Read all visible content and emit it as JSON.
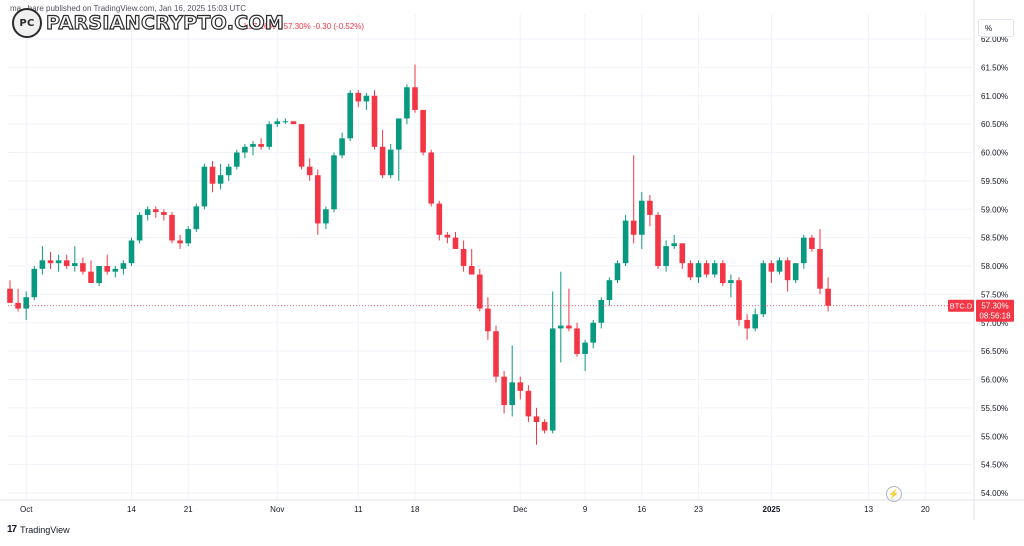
{
  "header": {
    "published": "ma...hare published on TradingView.com, Jan 16, 2025 15:03 UTC",
    "ohlc": "L57.16%  C57.30%  -0.30 (-0.52%)"
  },
  "watermark": {
    "text": "PARSIANCRYPTO.COM",
    "badge": "PC"
  },
  "scale_button": {
    "label": "%"
  },
  "footer": {
    "logo_mark": "17",
    "brand": "TradingView"
  },
  "colors": {
    "up": "#089981",
    "down": "#f23645",
    "grid": "#f0f3fa",
    "axis_text": "#131722"
  },
  "chart_data": {
    "type": "candlestick",
    "symbol": "BTC.D",
    "last_price_label": "57.30%",
    "countdown_label": "08:56:18",
    "last_price": 57.3,
    "ylim": [
      54.0,
      62.0
    ],
    "y_ticks": [
      "54.00%",
      "54.50%",
      "55.00%",
      "55.50%",
      "56.00%",
      "56.50%",
      "57.00%",
      "57.50%",
      "58.00%",
      "58.50%",
      "59.00%",
      "59.50%",
      "60.00%",
      "60.50%",
      "61.00%",
      "61.50%",
      "62.00%"
    ],
    "y_values": [
      54.0,
      54.5,
      55.0,
      55.5,
      56.0,
      56.5,
      57.0,
      57.5,
      58.0,
      58.5,
      59.0,
      59.5,
      60.0,
      60.5,
      61.0,
      61.5,
      62.0
    ],
    "x_ticks": [
      {
        "label": "Oct",
        "index": 2
      },
      {
        "label": "14",
        "index": 15
      },
      {
        "label": "21",
        "index": 22
      },
      {
        "label": "Nov",
        "index": 33
      },
      {
        "label": "11",
        "index": 43
      },
      {
        "label": "18",
        "index": 50
      },
      {
        "label": "Dec",
        "index": 63
      },
      {
        "label": "9",
        "index": 71
      },
      {
        "label": "16",
        "index": 78
      },
      {
        "label": "23",
        "index": 85
      },
      {
        "label": "2025",
        "index": 94
      },
      {
        "label": "13",
        "index": 106
      },
      {
        "label": "20",
        "index": 113
      }
    ],
    "candles": [
      [
        57.6,
        57.75,
        57.35,
        57.35
      ],
      [
        57.35,
        57.6,
        57.2,
        57.25
      ],
      [
        57.25,
        57.55,
        57.05,
        57.45
      ],
      [
        57.45,
        58.0,
        57.4,
        57.95
      ],
      [
        57.95,
        58.35,
        57.85,
        58.1
      ],
      [
        58.1,
        58.25,
        57.95,
        58.05
      ],
      [
        58.05,
        58.2,
        57.9,
        58.1
      ],
      [
        58.1,
        58.2,
        57.95,
        58.0
      ],
      [
        58.0,
        58.35,
        57.9,
        58.05
      ],
      [
        58.05,
        58.15,
        57.85,
        57.9
      ],
      [
        57.9,
        58.1,
        57.7,
        57.7
      ],
      [
        57.7,
        58.0,
        57.65,
        58.0
      ],
      [
        58.0,
        58.2,
        57.85,
        57.9
      ],
      [
        57.9,
        58.0,
        57.8,
        57.95
      ],
      [
        57.95,
        58.1,
        57.85,
        58.05
      ],
      [
        58.05,
        58.5,
        58.0,
        58.45
      ],
      [
        58.45,
        58.95,
        58.4,
        58.9
      ],
      [
        58.9,
        59.05,
        58.8,
        59.0
      ],
      [
        59.0,
        59.05,
        58.85,
        58.95
      ],
      [
        58.95,
        59.0,
        58.8,
        58.9
      ],
      [
        58.9,
        58.95,
        58.4,
        58.45
      ],
      [
        58.45,
        58.55,
        58.3,
        58.4
      ],
      [
        58.4,
        58.7,
        58.35,
        58.65
      ],
      [
        58.65,
        59.1,
        58.6,
        59.05
      ],
      [
        59.05,
        59.8,
        59.0,
        59.75
      ],
      [
        59.75,
        59.85,
        59.3,
        59.45
      ],
      [
        59.45,
        59.8,
        59.35,
        59.6
      ],
      [
        59.6,
        59.8,
        59.5,
        59.75
      ],
      [
        59.75,
        60.05,
        59.7,
        60.0
      ],
      [
        60.0,
        60.15,
        59.9,
        60.1
      ],
      [
        60.1,
        60.2,
        59.95,
        60.15
      ],
      [
        60.15,
        60.25,
        60.05,
        60.1
      ],
      [
        60.1,
        60.55,
        60.05,
        60.5
      ],
      [
        60.5,
        60.6,
        60.45,
        60.55
      ],
      [
        60.55,
        60.6,
        60.5,
        60.55
      ],
      [
        60.55,
        60.55,
        60.5,
        60.5
      ],
      [
        60.5,
        60.5,
        59.7,
        59.75
      ],
      [
        59.75,
        59.9,
        59.5,
        59.6
      ],
      [
        59.6,
        59.7,
        58.55,
        58.75
      ],
      [
        58.75,
        59.05,
        58.65,
        59.0
      ],
      [
        59.0,
        60.0,
        58.95,
        59.95
      ],
      [
        59.95,
        60.35,
        59.9,
        60.25
      ],
      [
        60.25,
        61.1,
        60.2,
        61.05
      ],
      [
        61.05,
        61.1,
        60.8,
        60.9
      ],
      [
        60.9,
        61.05,
        60.75,
        61.0
      ],
      [
        61.0,
        61.1,
        60.05,
        60.1
      ],
      [
        60.1,
        60.4,
        59.55,
        59.6
      ],
      [
        59.6,
        60.15,
        59.55,
        60.05
      ],
      [
        60.05,
        60.6,
        59.5,
        60.6
      ],
      [
        60.6,
        61.2,
        60.5,
        61.15
      ],
      [
        61.15,
        61.55,
        60.7,
        60.75
      ],
      [
        60.75,
        60.75,
        59.95,
        60.0
      ],
      [
        60.0,
        60.05,
        59.05,
        59.1
      ],
      [
        59.1,
        59.15,
        58.45,
        58.55
      ],
      [
        58.55,
        58.6,
        58.4,
        58.5
      ],
      [
        58.5,
        58.6,
        58.3,
        58.3
      ],
      [
        58.3,
        58.45,
        57.9,
        58.0
      ],
      [
        58.0,
        58.3,
        57.9,
        57.85
      ],
      [
        57.85,
        57.95,
        57.2,
        57.25
      ],
      [
        57.25,
        57.45,
        56.7,
        56.85
      ],
      [
        56.85,
        56.95,
        55.95,
        56.05
      ],
      [
        56.05,
        56.15,
        55.4,
        55.55
      ],
      [
        55.55,
        56.6,
        55.35,
        55.95
      ],
      [
        55.95,
        56.05,
        55.65,
        55.8
      ],
      [
        55.8,
        55.9,
        55.25,
        55.35
      ],
      [
        55.35,
        55.5,
        54.85,
        55.25
      ],
      [
        55.25,
        55.3,
        55.05,
        55.1
      ],
      [
        55.1,
        57.55,
        55.05,
        56.9
      ],
      [
        56.9,
        57.9,
        56.3,
        56.95
      ],
      [
        56.95,
        57.6,
        56.85,
        56.9
      ],
      [
        56.9,
        57.0,
        56.4,
        56.45
      ],
      [
        56.45,
        56.7,
        56.15,
        56.65
      ],
      [
        56.65,
        57.05,
        56.55,
        57.0
      ],
      [
        57.0,
        57.45,
        56.9,
        57.4
      ],
      [
        57.4,
        57.8,
        57.3,
        57.75
      ],
      [
        57.75,
        58.1,
        57.7,
        58.05
      ],
      [
        58.05,
        58.9,
        58.0,
        58.8
      ],
      [
        58.8,
        59.95,
        58.4,
        58.55
      ],
      [
        58.55,
        59.3,
        58.3,
        59.15
      ],
      [
        59.15,
        59.25,
        58.7,
        58.9
      ],
      [
        58.9,
        58.95,
        57.95,
        58.0
      ],
      [
        58.0,
        58.45,
        57.9,
        58.35
      ],
      [
        58.35,
        58.55,
        58.3,
        58.4
      ],
      [
        58.4,
        58.4,
        57.95,
        58.05
      ],
      [
        58.05,
        58.1,
        57.75,
        57.8
      ],
      [
        57.8,
        58.1,
        57.7,
        58.05
      ],
      [
        58.05,
        58.1,
        57.8,
        57.85
      ],
      [
        57.85,
        58.1,
        57.8,
        58.05
      ],
      [
        58.05,
        58.1,
        57.65,
        57.7
      ],
      [
        57.7,
        57.85,
        57.45,
        57.75
      ],
      [
        57.75,
        57.8,
        56.95,
        57.05
      ],
      [
        57.05,
        57.15,
        56.7,
        56.9
      ],
      [
        56.9,
        57.25,
        56.85,
        57.15
      ],
      [
        57.15,
        58.1,
        57.1,
        58.05
      ],
      [
        58.05,
        58.1,
        57.7,
        57.9
      ],
      [
        57.9,
        58.15,
        57.85,
        58.1
      ],
      [
        58.1,
        58.15,
        57.55,
        57.75
      ],
      [
        57.75,
        58.05,
        57.7,
        58.05
      ],
      [
        58.05,
        58.55,
        57.95,
        58.5
      ],
      [
        58.5,
        58.55,
        58.25,
        58.3
      ],
      [
        58.3,
        58.65,
        57.5,
        57.6
      ],
      [
        57.6,
        57.8,
        57.2,
        57.3
      ]
    ]
  }
}
